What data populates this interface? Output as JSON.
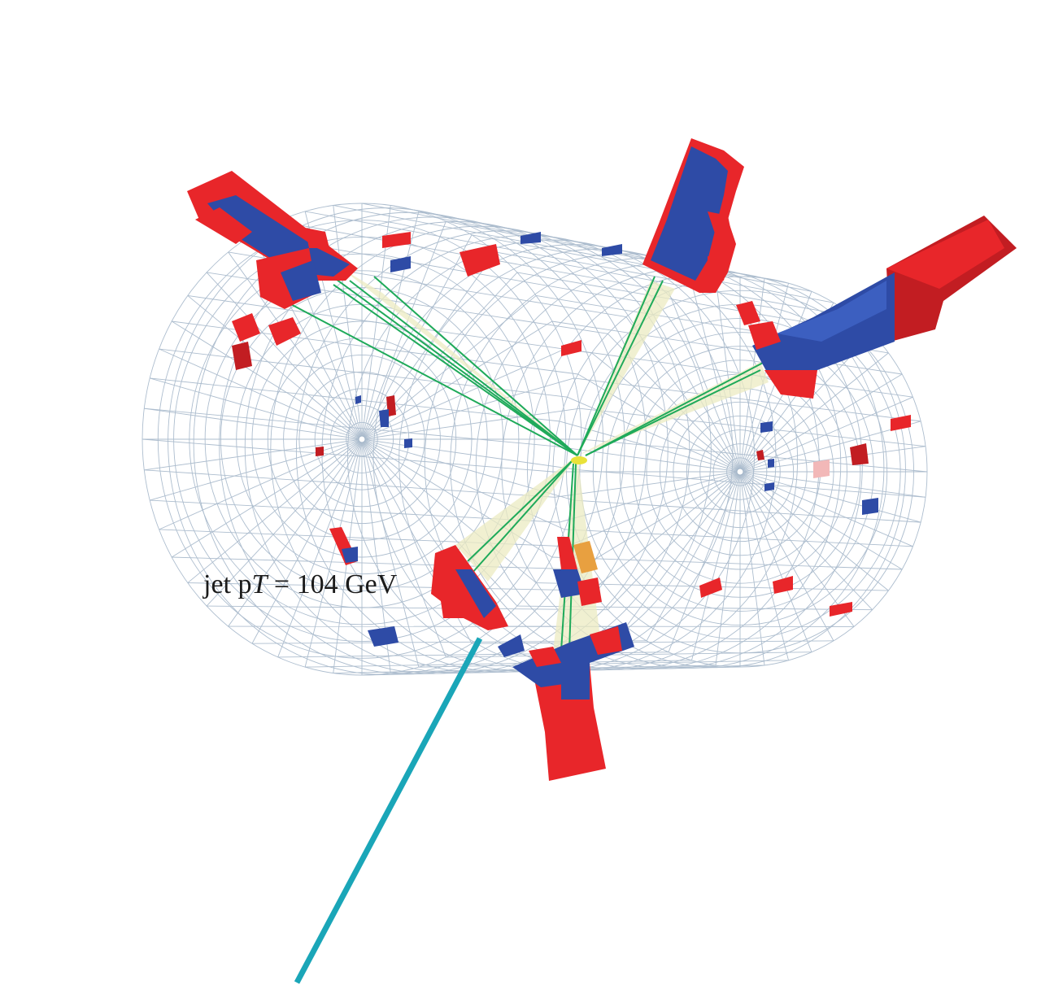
{
  "annotation": {
    "prefix": "jet p",
    "var": "T",
    "suffix": " = 104 GeV"
  },
  "colors": {
    "background": "#ffffff",
    "mesh": "#9fb2c6",
    "em_deposit": "#e8262a",
    "em_deposit_dark": "#c21d22",
    "had_deposit": "#2e4ba6",
    "had_deposit_light": "#3c5fc0",
    "track": "#1faa5a",
    "cone": "#ecebc2",
    "muon": "#1aa6b8",
    "vertex": "#e9e23a"
  },
  "icons": [
    "barrel-mesh",
    "jet-track",
    "jet-cone",
    "calorimeter-tower",
    "muon-track",
    "primary-vertex"
  ]
}
